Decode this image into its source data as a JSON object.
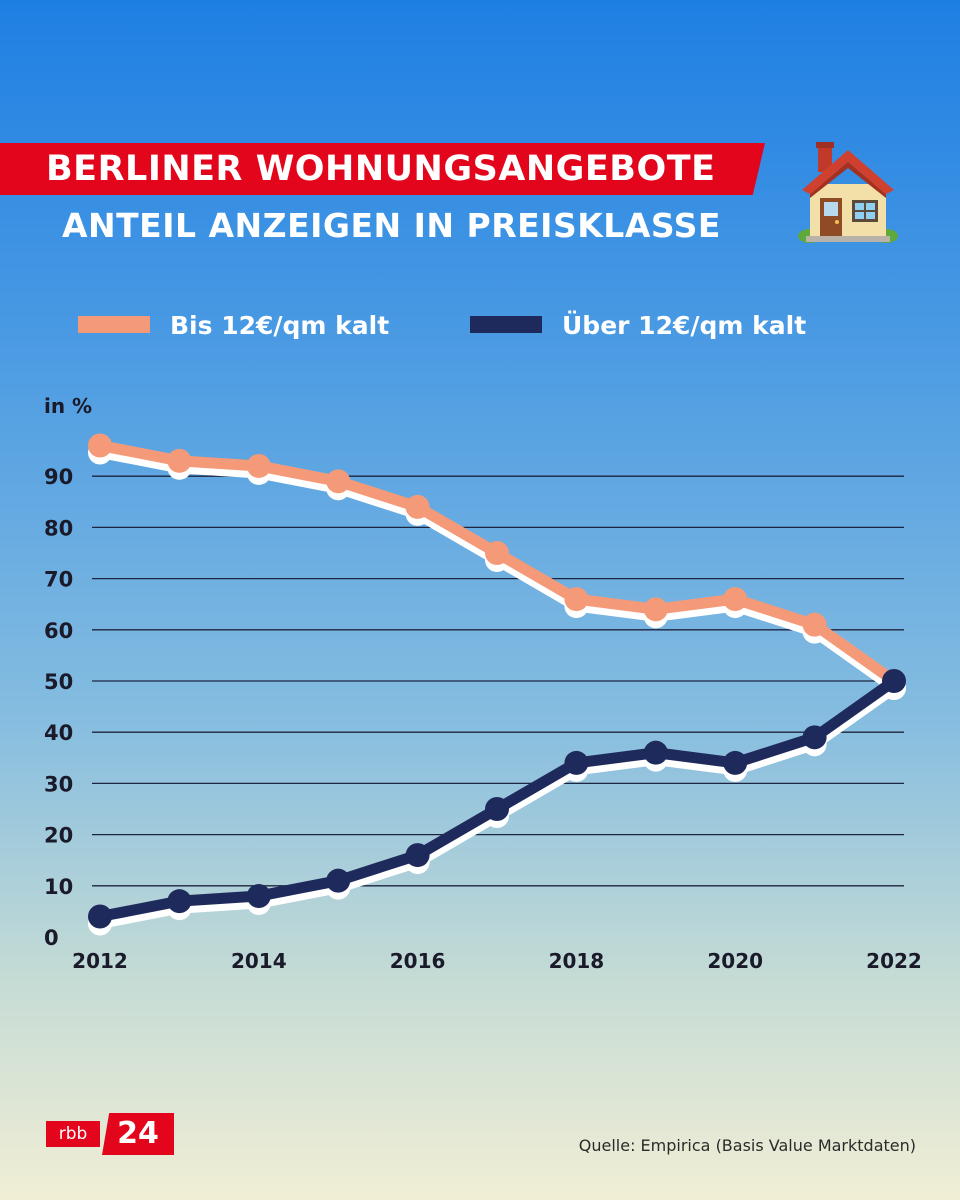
{
  "header": {
    "title": "BERLINER WOHNUNGSANGEBOTE",
    "subtitle": "ANTEIL ANZEIGEN IN PREISKLASSE",
    "icon": "house-icon"
  },
  "legend": [
    {
      "label": "Bis 12€/qm kalt",
      "color": "#f59a78"
    },
    {
      "label": "Über 12€/qm kalt",
      "color": "#1f2a5c"
    }
  ],
  "chart_data": {
    "type": "line",
    "ylabel": "in %",
    "xlabel": "",
    "x": [
      2012,
      2013,
      2014,
      2015,
      2016,
      2017,
      2018,
      2019,
      2020,
      2021,
      2022
    ],
    "x_tick_labels": [
      "2012",
      "2014",
      "2016",
      "2018",
      "2020",
      "2022"
    ],
    "y_ticks": [
      0,
      10,
      20,
      30,
      40,
      50,
      60,
      70,
      80,
      90
    ],
    "ylim": [
      0,
      100
    ],
    "xlim": [
      2012,
      2022
    ],
    "grid": true,
    "legend_position": "top",
    "series": [
      {
        "name": "Bis 12€/qm kalt",
        "color": "#f59a78",
        "values": [
          96,
          93,
          92,
          89,
          84,
          75,
          66,
          64,
          66,
          61,
          50
        ]
      },
      {
        "name": "Über 12€/qm kalt",
        "color": "#1f2a5c",
        "values": [
          4,
          7,
          8,
          11,
          16,
          25,
          34,
          36,
          34,
          39,
          50
        ]
      }
    ]
  },
  "footer": {
    "logo_left": "rbb",
    "logo_right": "24",
    "source": "Quelle: Empirica (Basis Value Marktdaten)"
  }
}
